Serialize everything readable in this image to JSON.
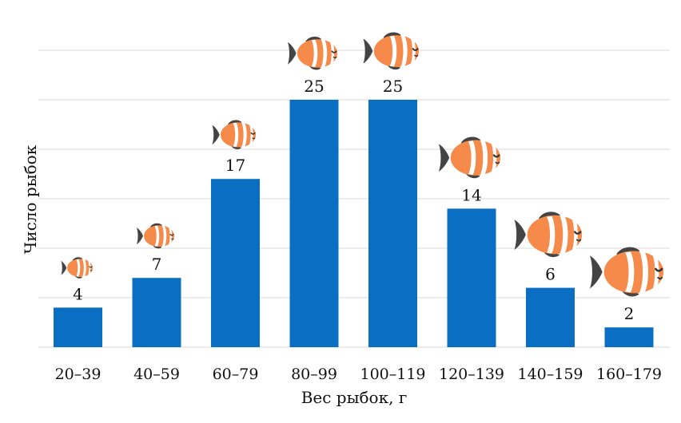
{
  "chart_data": {
    "type": "bar",
    "categories": [
      "20–39",
      "40–59",
      "60–79",
      "80–99",
      "100–119",
      "120–139",
      "140–159",
      "160–179"
    ],
    "values": [
      4,
      7,
      17,
      25,
      25,
      14,
      6,
      2
    ],
    "xlabel": "Вес рыбок, г",
    "ylabel": "Число рыбок",
    "ylim": [
      0,
      30
    ],
    "grid": true,
    "legend": "none",
    "bar_color": "#0a6fc2",
    "fish_icon": "clownfish-icon"
  }
}
